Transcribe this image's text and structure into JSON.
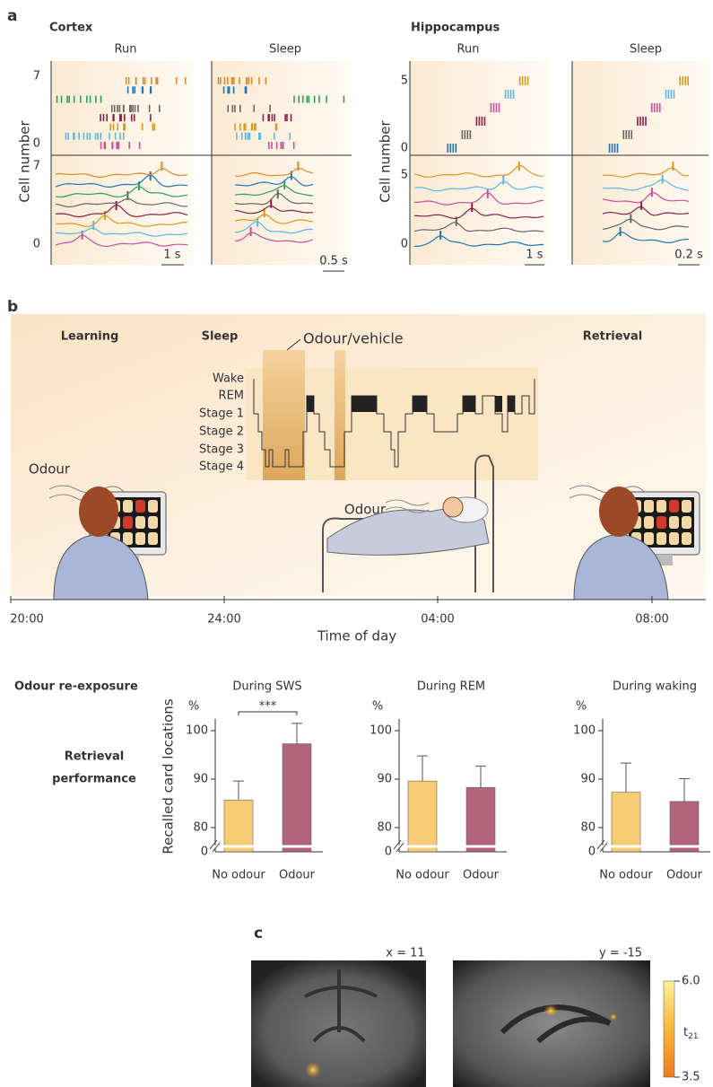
{
  "panel_a": {
    "label": "a",
    "ylabel": "Cell number",
    "groups": [
      {
        "title": "Cortex",
        "panels": [
          {
            "title": "Run",
            "scale_bar": "1 s"
          },
          {
            "title": "Sleep",
            "scale_bar": "0.5 s"
          }
        ],
        "raster_ticks": [
          "7",
          "0"
        ],
        "trace_ticks": [
          "7",
          "0"
        ]
      },
      {
        "title": "Hippocampus",
        "panels": [
          {
            "title": "Run",
            "scale_bar": "1 s"
          },
          {
            "title": "Sleep",
            "scale_bar": "0.2 s"
          }
        ],
        "raster_ticks": [
          "5",
          "0"
        ],
        "trace_ticks": [
          "5",
          "0"
        ]
      }
    ]
  },
  "panel_b": {
    "label": "b",
    "phases": [
      "Learning",
      "Sleep",
      "Retrieval"
    ],
    "stimulus": "Odour/vehicle",
    "hypnogram_levels": [
      "Wake",
      "REM",
      "Stage 1",
      "Stage 2",
      "Stage 3",
      "Stage 4"
    ],
    "odour_labels": [
      "Odour",
      "Odour"
    ],
    "times": [
      "20:00",
      "24:00",
      "04:00",
      "08:00"
    ],
    "xlabel": "Time of day",
    "section_label": "Odour re-exposure",
    "row_label": [
      "Retrieval",
      "performance"
    ]
  },
  "chart_data": [
    {
      "type": "bar",
      "title": "During SWS",
      "ylabel": "Recalled card locations",
      "y_unit": "%",
      "annotation": "***",
      "categories": [
        "No odour",
        "Odour"
      ],
      "values": [
        85.7,
        97.3
      ],
      "errors": [
        3.9,
        4.2
      ],
      "colors": [
        "#f7c766",
        "#a8546e"
      ],
      "ylim": [
        75,
        105
      ],
      "yticks": [
        80,
        90,
        100
      ],
      "axis_break_label": "0"
    },
    {
      "type": "bar",
      "title": "During REM",
      "y_unit": "%",
      "categories": [
        "No odour",
        "Odour"
      ],
      "values": [
        89.6,
        88.3
      ],
      "errors": [
        5.2,
        4.4
      ],
      "colors": [
        "#f7c766",
        "#a8546e"
      ],
      "ylim": [
        75,
        105
      ],
      "yticks": [
        80,
        90,
        100
      ],
      "axis_break_label": "0"
    },
    {
      "type": "bar",
      "title": "During waking",
      "y_unit": "%",
      "categories": [
        "No odour",
        "Odour"
      ],
      "values": [
        87.3,
        85.4
      ],
      "errors": [
        6.0,
        4.7
      ],
      "colors": [
        "#f7c766",
        "#a8546e"
      ],
      "ylim": [
        75,
        105
      ],
      "yticks": [
        80,
        90,
        100
      ],
      "axis_break_label": "0"
    }
  ],
  "panel_c": {
    "label": "c",
    "images": [
      "x = 11",
      "y = -15"
    ],
    "colorbar": {
      "label": "t",
      "label_subscript": "21",
      "clim": [
        3.5,
        6
      ],
      "ticks": [
        {
          "value": 6,
          "label": "6.0"
        },
        3.5
      ]
    }
  }
}
